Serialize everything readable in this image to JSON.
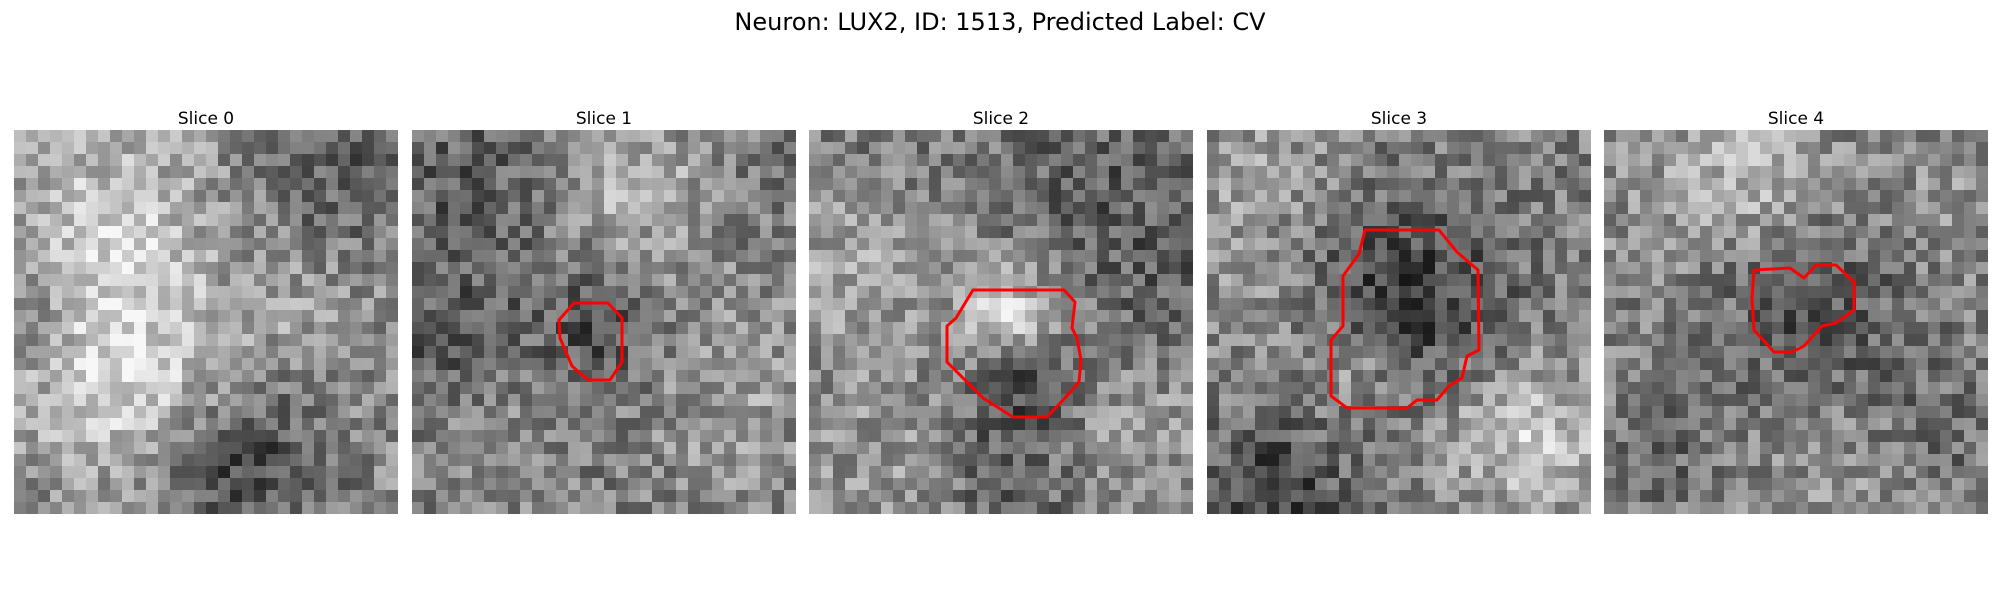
{
  "figure": {
    "title": "Neuron: LUX2, ID: 1513, Predicted Label: CV"
  },
  "colors": {
    "contour": "#ff0000",
    "background": "#ffffff",
    "colormap": "gray"
  },
  "panels": [
    {
      "title": "Slice 0",
      "has_contour": false
    },
    {
      "title": "Slice 1",
      "has_contour": true
    },
    {
      "title": "Slice 2",
      "has_contour": true
    },
    {
      "title": "Slice 3",
      "has_contour": true
    },
    {
      "title": "Slice 4",
      "has_contour": true
    }
  ]
}
